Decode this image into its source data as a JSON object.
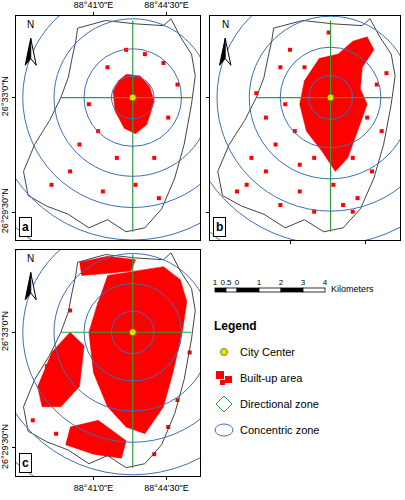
{
  "chart_data": [
    {
      "type": "map",
      "label": "a",
      "north": "N",
      "xlim": [
        88.6213,
        88.7685
      ],
      "ylim": [
        26.4775,
        26.5915
      ],
      "xticks": [
        {
          "value": 88.68333,
          "label": "88°41'0\"E"
        },
        {
          "value": 88.74167,
          "label": "88°44'30\"E"
        }
      ],
      "yticks": [
        {
          "value": 26.55,
          "label": "26°33'0\"N"
        },
        {
          "value": 26.49167,
          "label": "26°29'30\"N"
        }
      ],
      "boundary": [
        [
          88.6706,
          26.5853
        ],
        [
          88.693,
          26.5892
        ],
        [
          88.7169,
          26.5875
        ],
        [
          88.7393,
          26.5866
        ],
        [
          88.7453,
          26.5901
        ],
        [
          88.7528,
          26.5809
        ],
        [
          88.7617,
          26.5721
        ],
        [
          88.7647,
          26.561
        ],
        [
          88.7617,
          26.5466
        ],
        [
          88.7558,
          26.5261
        ],
        [
          88.7483,
          26.509
        ],
        [
          88.7378,
          26.4933
        ],
        [
          88.7244,
          26.4837
        ],
        [
          88.7094,
          26.4817
        ],
        [
          88.6945,
          26.4878
        ],
        [
          88.6796,
          26.4837
        ],
        [
          88.6631,
          26.4906
        ],
        [
          88.646,
          26.4947
        ],
        [
          88.631,
          26.5001
        ],
        [
          88.6273,
          26.5124
        ],
        [
          88.6362,
          26.5261
        ],
        [
          88.6482,
          26.5384
        ],
        [
          88.6572,
          26.55
        ],
        [
          88.6631,
          26.5602
        ],
        [
          88.6661,
          26.5699
        ],
        [
          88.6691,
          26.5787
        ]
      ],
      "center": [
        88.7147,
        26.55
      ],
      "concentric_radii": [
        0.017,
        0.039,
        0.063,
        0.088,
        0.114,
        0.14
      ],
      "directional_lines": [
        [
          [
            88.7147,
            26.5892
          ],
          [
            88.7147,
            26.4817
          ]
        ],
        [
          [
            88.6572,
            26.55
          ],
          [
            88.7617,
            26.55
          ]
        ]
      ],
      "built_up_areas": [
        [
          [
            88.7094,
            26.5619
          ],
          [
            88.7206,
            26.561
          ],
          [
            88.7281,
            26.5558
          ],
          [
            88.7319,
            26.548
          ],
          [
            88.7259,
            26.5363
          ],
          [
            88.7169,
            26.5316
          ],
          [
            88.708,
            26.5343
          ],
          [
            88.7005,
            26.5432
          ],
          [
            88.699,
            26.5531
          ],
          [
            88.7035,
            26.5588
          ]
        ]
      ],
      "built_up_points": [
        [
          88.6945,
          26.5654
        ],
        [
          88.7393,
          26.5676
        ],
        [
          88.687,
          26.5329
        ],
        [
          88.7319,
          26.5193
        ],
        [
          88.6796,
          26.5466
        ],
        [
          88.7431,
          26.5398
        ],
        [
          88.7244,
          26.5721
        ],
        [
          88.702,
          26.5193
        ],
        [
          88.6721,
          26.5261
        ],
        [
          88.7505,
          26.5566
        ],
        [
          88.6908,
          26.5022
        ],
        [
          88.7169,
          26.5056
        ],
        [
          88.6646,
          26.5124
        ],
        [
          88.7094,
          26.5743
        ],
        [
          88.6497,
          26.5056
        ],
        [
          88.7356,
          26.4988
        ]
      ]
    },
    {
      "type": "map",
      "label": "b",
      "north": "N",
      "tick_labels": false,
      "xlim": [
        88.6213,
        88.7685
      ],
      "ylim": [
        26.4775,
        26.5915
      ],
      "xticks": [
        88.68333,
        88.74167
      ],
      "yticks": [
        26.55,
        26.49167
      ],
      "boundary": [
        [
          88.6706,
          26.5853
        ],
        [
          88.693,
          26.5892
        ],
        [
          88.7169,
          26.5875
        ],
        [
          88.7393,
          26.5866
        ],
        [
          88.7453,
          26.5901
        ],
        [
          88.7528,
          26.5809
        ],
        [
          88.7617,
          26.5721
        ],
        [
          88.7647,
          26.561
        ],
        [
          88.7617,
          26.5466
        ],
        [
          88.7558,
          26.5261
        ],
        [
          88.7483,
          26.509
        ],
        [
          88.7378,
          26.4933
        ],
        [
          88.7244,
          26.4837
        ],
        [
          88.7094,
          26.4817
        ],
        [
          88.6945,
          26.4878
        ],
        [
          88.6796,
          26.4837
        ],
        [
          88.6631,
          26.4906
        ],
        [
          88.646,
          26.4947
        ],
        [
          88.631,
          26.5001
        ],
        [
          88.6273,
          26.5124
        ],
        [
          88.6362,
          26.5261
        ],
        [
          88.6482,
          26.5384
        ],
        [
          88.6572,
          26.55
        ],
        [
          88.6631,
          26.5602
        ],
        [
          88.6661,
          26.5699
        ],
        [
          88.6691,
          26.5787
        ]
      ],
      "center": [
        88.7147,
        26.55
      ],
      "concentric_radii": [
        0.017,
        0.039,
        0.063,
        0.088,
        0.114,
        0.14
      ],
      "directional_lines": [
        [
          [
            88.7147,
            26.5892
          ],
          [
            88.7147,
            26.4817
          ]
        ],
        [
          [
            88.6572,
            26.55
          ],
          [
            88.7617,
            26.55
          ]
        ]
      ],
      "built_up_areas": [
        [
          [
            88.7057,
            26.5699
          ],
          [
            88.7206,
            26.5721
          ],
          [
            88.7319,
            26.5787
          ],
          [
            88.7431,
            26.5809
          ],
          [
            88.7483,
            26.5743
          ],
          [
            88.7393,
            26.5654
          ],
          [
            88.7378,
            26.5544
          ],
          [
            88.7431,
            26.5466
          ],
          [
            88.7356,
            26.5329
          ],
          [
            88.7281,
            26.5193
          ],
          [
            88.7184,
            26.5124
          ],
          [
            88.708,
            26.5227
          ],
          [
            88.696,
            26.5329
          ],
          [
            88.6908,
            26.5466
          ],
          [
            88.6945,
            26.5588
          ]
        ]
      ],
      "built_up_points": [
        [
          88.6945,
          26.5654
        ],
        [
          88.7393,
          26.5676
        ],
        [
          88.687,
          26.5329
        ],
        [
          88.7319,
          26.5193
        ],
        [
          88.6796,
          26.5466
        ],
        [
          88.7431,
          26.5398
        ],
        [
          88.702,
          26.5193
        ],
        [
          88.6721,
          26.5261
        ],
        [
          88.7505,
          26.5566
        ],
        [
          88.6908,
          26.5022
        ],
        [
          88.7169,
          26.5056
        ],
        [
          88.6646,
          26.5124
        ],
        [
          88.6497,
          26.5056
        ],
        [
          88.7356,
          26.4988
        ],
        [
          88.6758,
          26.5654
        ],
        [
          88.6833,
          26.5743
        ],
        [
          88.7543,
          26.5329
        ],
        [
          88.7468,
          26.5124
        ],
        [
          88.6646,
          26.5398
        ],
        [
          88.6534,
          26.5193
        ],
        [
          88.6422,
          26.5022
        ],
        [
          88.6758,
          26.4953
        ],
        [
          88.702,
          26.4919
        ],
        [
          88.7244,
          26.4953
        ],
        [
          88.758,
          26.5624
        ],
        [
          88.7132,
          26.5831
        ],
        [
          88.6572,
          26.5522
        ],
        [
          88.6908,
          26.5158
        ],
        [
          88.7319,
          26.4919
        ]
      ]
    },
    {
      "type": "map",
      "label": "c",
      "north": "N",
      "xlim": [
        88.6213,
        88.7685
      ],
      "ylim": [
        26.4775,
        26.5915
      ],
      "xticks": [
        {
          "value": 88.68333,
          "label": "88°41'0\"E"
        },
        {
          "value": 88.74167,
          "label": "88°44'30\"E"
        }
      ],
      "yticks": [
        {
          "value": 26.55,
          "label": "26°33'0\"N"
        },
        {
          "value": 26.49167,
          "label": "26°29'30\"N"
        }
      ],
      "boundary": [
        [
          88.6706,
          26.5853
        ],
        [
          88.693,
          26.5892
        ],
        [
          88.7169,
          26.5875
        ],
        [
          88.7393,
          26.5866
        ],
        [
          88.7453,
          26.5901
        ],
        [
          88.7528,
          26.5809
        ],
        [
          88.7617,
          26.5721
        ],
        [
          88.7647,
          26.561
        ],
        [
          88.7617,
          26.5466
        ],
        [
          88.7558,
          26.5261
        ],
        [
          88.7483,
          26.509
        ],
        [
          88.7378,
          26.4933
        ],
        [
          88.7244,
          26.4837
        ],
        [
          88.7094,
          26.4817
        ],
        [
          88.6945,
          26.4878
        ],
        [
          88.6796,
          26.4837
        ],
        [
          88.6631,
          26.4906
        ],
        [
          88.646,
          26.4947
        ],
        [
          88.631,
          26.5001
        ],
        [
          88.6273,
          26.5124
        ],
        [
          88.6362,
          26.5261
        ],
        [
          88.6482,
          26.5384
        ],
        [
          88.6572,
          26.55
        ],
        [
          88.6631,
          26.5602
        ],
        [
          88.6661,
          26.5699
        ],
        [
          88.6691,
          26.5787
        ]
      ],
      "center": [
        88.7147,
        26.55
      ],
      "concentric_radii": [
        0.017,
        0.039,
        0.063,
        0.088,
        0.114,
        0.14
      ],
      "directional_lines": [
        [
          [
            88.7147,
            26.5892
          ],
          [
            88.7147,
            26.4817
          ]
        ],
        [
          [
            88.6572,
            26.55
          ],
          [
            88.7617,
            26.55
          ]
        ]
      ],
      "built_up_areas": [
        [
          [
            88.6945,
            26.5787
          ],
          [
            88.7169,
            26.5809
          ],
          [
            88.7393,
            26.5831
          ],
          [
            88.7528,
            26.5765
          ],
          [
            88.758,
            26.5654
          ],
          [
            88.7543,
            26.55
          ],
          [
            88.7468,
            26.5295
          ],
          [
            88.7393,
            26.5124
          ],
          [
            88.7244,
            26.4988
          ],
          [
            88.7094,
            26.5022
          ],
          [
            88.6945,
            26.5124
          ],
          [
            88.6833,
            26.5295
          ],
          [
            88.6796,
            26.55
          ],
          [
            88.687,
            26.5654
          ]
        ],
        [
          [
            88.6497,
            26.5398
          ],
          [
            88.6646,
            26.55
          ],
          [
            88.6758,
            26.5432
          ],
          [
            88.6721,
            26.5227
          ],
          [
            88.6572,
            26.5124
          ],
          [
            88.6422,
            26.5124
          ],
          [
            88.6385,
            26.5227
          ]
        ],
        [
          [
            88.6646,
            26.5022
          ],
          [
            88.687,
            26.5056
          ],
          [
            88.7094,
            26.4953
          ],
          [
            88.7057,
            26.4865
          ],
          [
            88.6833,
            26.4885
          ],
          [
            88.6609,
            26.4933
          ]
        ],
        [
          [
            88.6721,
            26.5853
          ],
          [
            88.6945,
            26.5883
          ],
          [
            88.7169,
            26.5866
          ],
          [
            88.7132,
            26.5809
          ],
          [
            88.6908,
            26.5795
          ],
          [
            88.6736,
            26.5787
          ]
        ]
      ],
      "built_up_points": [
        [
          88.6347,
          26.5056
        ],
        [
          88.6534,
          26.4988
        ],
        [
          88.7319,
          26.4885
        ],
        [
          88.7505,
          26.5158
        ],
        [
          88.7602,
          26.5398
        ],
        [
          88.6646,
          26.561
        ],
        [
          88.6609,
          26.5329
        ],
        [
          88.646,
          26.5329
        ],
        [
          88.7431,
          26.5022
        ]
      ]
    }
  ],
  "scale_bar": {
    "ticks": [
      {
        "value": -1,
        "label": "1"
      },
      {
        "value": -0.5,
        "label": "0.5"
      },
      0,
      1,
      2,
      3,
      4
    ],
    "unit": "Kilometers"
  },
  "legend": {
    "title": "Legend",
    "items": [
      {
        "name": "City Center",
        "color": "#e8df00",
        "marker": "circle"
      },
      {
        "name": "Built-up area",
        "color": "#ff0000",
        "marker": "square"
      },
      {
        "name": "Directional zone",
        "color": "#2e9e3e",
        "marker": "diamond"
      },
      {
        "name": "Concentric zone",
        "color": "#3d6fb6",
        "marker": "ellipse"
      }
    ]
  }
}
